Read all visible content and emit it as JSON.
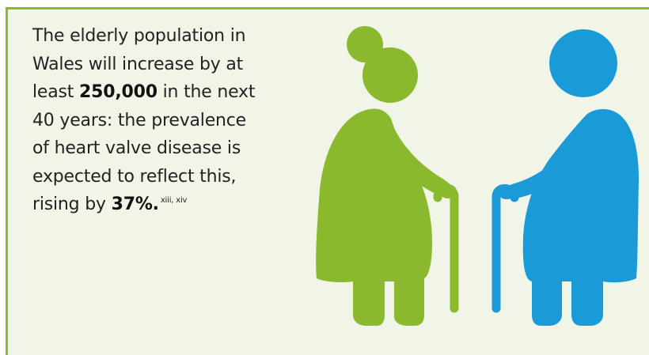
{
  "statement": {
    "line1": "The elderly population in",
    "line2": "Wales will increase by at",
    "line3_before": "least ",
    "line3_bold": "250,000",
    "line3_after": " in the next",
    "line4": "40 years: the prevalence",
    "line5": "of heart valve disease is",
    "line6": "expected to reflect this,",
    "line7_before": "rising by ",
    "line7_bold": "37%.",
    "line7_ref": "xiii, xiv"
  },
  "figures": {
    "left": {
      "icon": "elderly-woman-with-cane-icon",
      "color": "#8ab92d"
    },
    "right": {
      "icon": "elderly-man-with-cane-icon",
      "color": "#1a9bd7"
    }
  },
  "colors": {
    "border": "#8ab92d",
    "background": "#f1f5e8",
    "text": "#222222"
  }
}
